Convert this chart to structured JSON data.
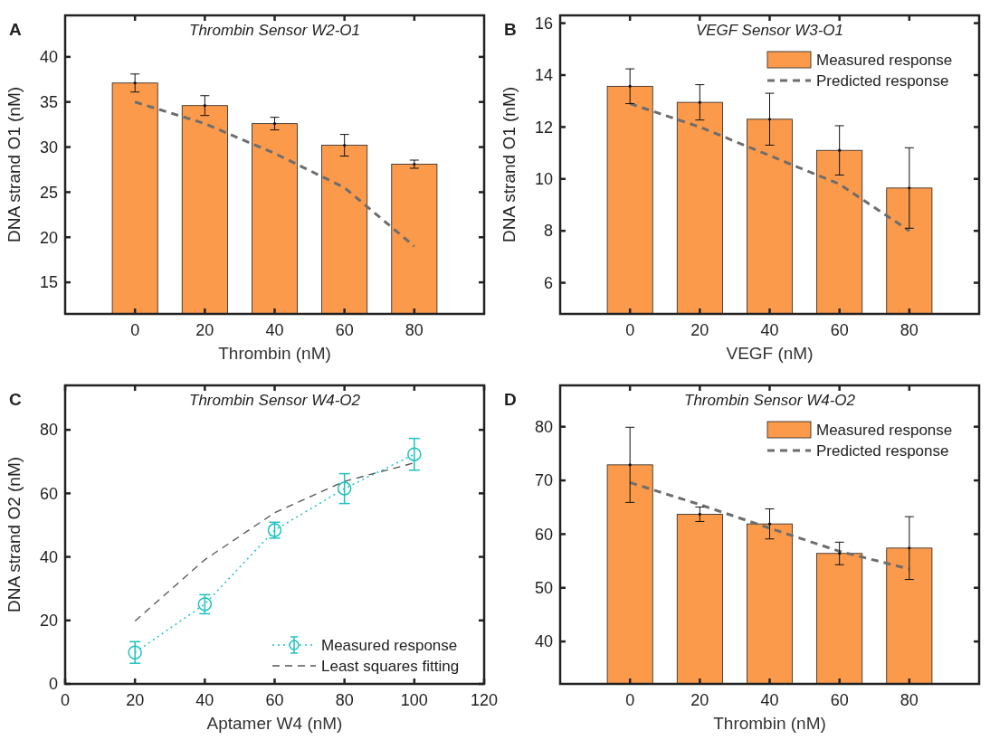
{
  "chart_data": [
    {
      "type": "bar",
      "title": "Thrombin Sensor W2-O1",
      "xlabel": "Thrombin (nM)",
      "ylabel": "DNA strand O1 (nM)",
      "annotations": [
        "A"
      ],
      "x": [
        0,
        20,
        40,
        60,
        80
      ],
      "xlim": [
        -20,
        100
      ],
      "xticks": [
        0,
        20,
        40,
        60,
        80
      ],
      "ylim": [
        11.5,
        44.6
      ],
      "yticks": [
        15,
        20,
        25,
        30,
        35,
        40
      ],
      "legend": false,
      "series": [
        {
          "type": "bar",
          "color": "#fb9a4b",
          "values": [
            37.1,
            34.6,
            32.6,
            30.2,
            28.1
          ],
          "errors": [
            1,
            1.1,
            0.7,
            1.2,
            0.45
          ]
        },
        {
          "type": "line",
          "color": "#6d6d6d",
          "line_style": "dashed",
          "values": [
            35,
            32.6,
            29.3,
            25.5,
            19
          ]
        }
      ]
    },
    {
      "type": "bar",
      "title": "VEGF Sensor W3-O1",
      "xlabel": "VEGF (nM)",
      "ylabel": "DNA strand O1 (nM)",
      "annotations": [
        "B"
      ],
      "x": [
        0,
        20,
        40,
        60,
        80
      ],
      "xlim": [
        -20,
        100
      ],
      "xticks": [
        0,
        20,
        40,
        60,
        80
      ],
      "ylim": [
        4.8,
        16.3
      ],
      "yticks": [
        6,
        8,
        10,
        12,
        14,
        16
      ],
      "legend": "top right",
      "series": [
        {
          "type": "bar",
          "name": "Measured response",
          "color": "#fb9a4b",
          "values": [
            13.57,
            12.95,
            12.3,
            11.1,
            9.65
          ],
          "errors": [
            0.67,
            0.68,
            1,
            0.95,
            1.55
          ]
        },
        {
          "type": "line",
          "name": "Predicted response",
          "color": "#6d6d6d",
          "line_style": "dashed",
          "values": [
            12.9,
            12,
            10.9,
            9.8,
            8
          ]
        }
      ]
    },
    {
      "type": "line",
      "title": "Thrombin Sensor W4-O2",
      "xlabel": "Aptamer W4 (nM)",
      "ylabel": "DNA strand O2 (nM)",
      "annotations": [
        "C"
      ],
      "x": [
        20,
        40,
        60,
        80,
        100
      ],
      "xlim": [
        0,
        120
      ],
      "xticks": [
        0,
        20,
        40,
        60,
        80,
        100,
        120
      ],
      "ylim": [
        0,
        94
      ],
      "yticks": [
        0,
        20,
        40,
        60,
        80
      ],
      "legend": "bottom right",
      "series": [
        {
          "type": "line",
          "name": "Measured response",
          "color": "#1ec0c0",
          "line_style": "dotted",
          "marker": "circle",
          "values": [
            9.9,
            25.1,
            48.4,
            61.5,
            72.3
          ],
          "errors": [
            3.4,
            3,
            2.5,
            4.7,
            5
          ]
        },
        {
          "type": "line",
          "name": "Least squares fitting",
          "color": "#555555",
          "line_style": "dashed",
          "marker": "none",
          "values": [
            19.8,
            39.1,
            53.9,
            63.8,
            69.6
          ]
        }
      ]
    },
    {
      "type": "bar",
      "title": "Thrombin Sensor W4-O2",
      "xlabel": "Thrombin (nM)",
      "annotations": [
        "D"
      ],
      "x": [
        0,
        20,
        40,
        60,
        80
      ],
      "xlim": [
        -20,
        100
      ],
      "xticks": [
        0,
        20,
        40,
        60,
        80
      ],
      "ylim": [
        32.1,
        87.7
      ],
      "yticks": [
        40,
        50,
        60,
        70,
        80
      ],
      "legend": "top right",
      "series": [
        {
          "type": "bar",
          "name": "Measured response",
          "color": "#fb9a4b",
          "values": [
            72.9,
            63.7,
            61.9,
            56.4,
            57.4
          ],
          "errors": [
            7,
            1.35,
            2.8,
            2.1,
            5.85
          ]
        },
        {
          "type": "line",
          "name": "Predicted response",
          "color": "#6d6d6d",
          "line_style": "dashed",
          "values": [
            69.6,
            65.5,
            61.1,
            56.8,
            53.5
          ]
        }
      ]
    }
  ]
}
